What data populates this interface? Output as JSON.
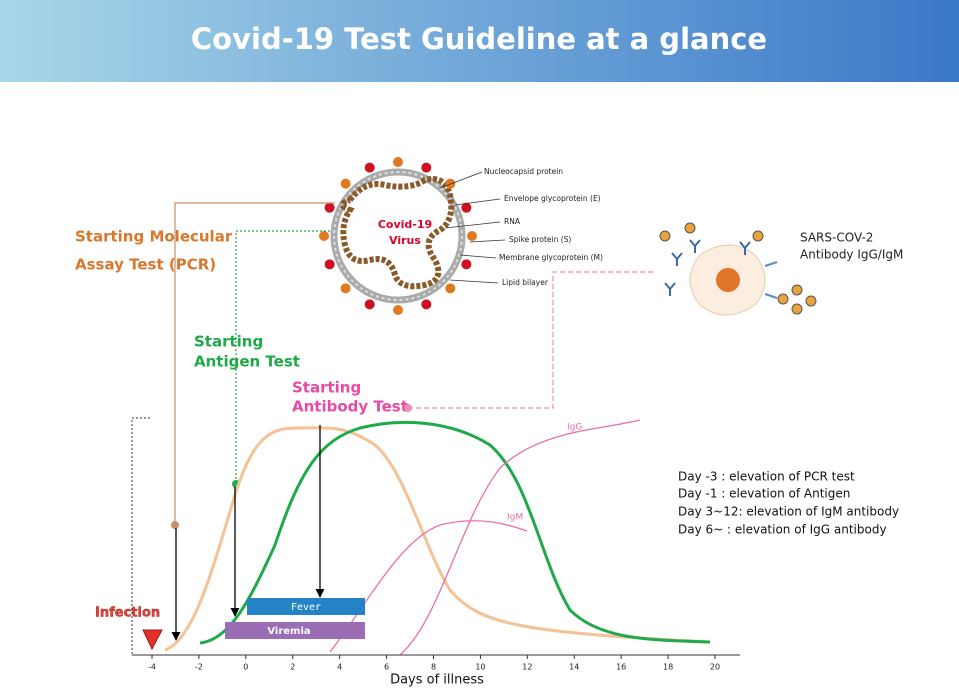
{
  "header": {
    "title": "Covid-19 Test Guideline at a glance"
  },
  "virus": {
    "center_label": [
      "Covid-19",
      "Virus"
    ],
    "parts": [
      "Nucleocapsid protein",
      "Envelope glycoprotein (E)",
      "RNA",
      "Spike protein (S)",
      "Membrane glycoprotein (M)",
      "Lipid bilayer"
    ]
  },
  "antibody": {
    "label": [
      "SARS-COV-2",
      "Antibody IgG/IgM"
    ]
  },
  "tests": {
    "pcr": [
      "Starting  Molecular",
      "Assay Test  (PCR)"
    ],
    "antigen": [
      "Starting",
      "Antigen Test"
    ],
    "antibody": [
      "Starting",
      "Antibody Test"
    ]
  },
  "plot": {
    "x_label": "Days of illness",
    "xticks": [
      -4,
      -2,
      0,
      2,
      4,
      6,
      8,
      10,
      12,
      14,
      16,
      18,
      20
    ],
    "igg": "IgG",
    "igm": "IgM",
    "fever": "Fever",
    "viremia": "Viremia",
    "infection": "Infection"
  },
  "notes": [
    "Day  -3 : elevation of PCR test",
    "Day  -1 : elevation of Antigen",
    "Day 3~12:  elevation of IgM antibody",
    "Day 6~ : elevation of IgG antibody"
  ]
}
